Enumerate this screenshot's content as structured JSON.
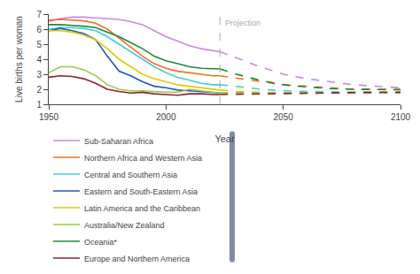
{
  "chart_data": {
    "type": "line",
    "xlabel": "Year",
    "ylabel": "Live births per woman",
    "xlim": [
      1950,
      2100
    ],
    "xticks": [
      1950,
      2000,
      2050,
      2100
    ],
    "ylim": [
      1,
      7
    ],
    "yticks": [
      1,
      2,
      3,
      4,
      5,
      6,
      7
    ],
    "grid": false,
    "legend": "bottom",
    "vlines": [
      {
        "x": 2023,
        "line_style": "dashed",
        "color": "#aaaaaa"
      }
    ],
    "annotations": [
      {
        "text": "Projection",
        "x": 2023,
        "y": 6.8,
        "color": "#aaaaaa"
      }
    ],
    "series": [
      {
        "name": "Sub-Saharan Africa",
        "color": "#cc88dd",
        "line_style": "solid",
        "x": [
          1950,
          1955,
          1960,
          1965,
          1970,
          1975,
          1980,
          1985,
          1990,
          1995,
          2000,
          2005,
          2010,
          2015,
          2020,
          2023
        ],
        "values": [
          6.5,
          6.7,
          6.8,
          6.8,
          6.75,
          6.7,
          6.65,
          6.5,
          6.3,
          5.9,
          5.5,
          5.2,
          4.9,
          4.7,
          4.6,
          4.5
        ],
        "projection": {
          "line_style": "dashed",
          "x": [
            2023,
            2030,
            2040,
            2050,
            2060,
            2070,
            2080,
            2090,
            2100
          ],
          "values": [
            4.5,
            4.1,
            3.5,
            3.0,
            2.7,
            2.5,
            2.3,
            2.2,
            2.1
          ]
        }
      },
      {
        "name": "Northern Africa and Western Asia",
        "color": "#f07020",
        "line_style": "solid",
        "x": [
          1950,
          1955,
          1960,
          1965,
          1970,
          1975,
          1980,
          1985,
          1990,
          1995,
          2000,
          2005,
          2010,
          2015,
          2020,
          2023
        ],
        "values": [
          6.6,
          6.65,
          6.6,
          6.55,
          6.4,
          6.0,
          5.4,
          4.8,
          4.2,
          3.7,
          3.4,
          3.2,
          3.1,
          3.0,
          2.9,
          2.9
        ],
        "projection": {
          "line_style": "dashed",
          "x": [
            2023,
            2030,
            2040,
            2050,
            2060,
            2070,
            2080,
            2090,
            2100
          ],
          "values": [
            2.9,
            2.75,
            2.5,
            2.3,
            2.2,
            2.1,
            2.0,
            2.0,
            2.0
          ]
        }
      },
      {
        "name": "Central and Southern Asia",
        "color": "#44ccdd",
        "line_style": "solid",
        "x": [
          1950,
          1955,
          1960,
          1965,
          1970,
          1975,
          1980,
          1985,
          1990,
          1995,
          2000,
          2005,
          2010,
          2015,
          2020,
          2023
        ],
        "values": [
          6.0,
          6.1,
          6.1,
          6.05,
          5.9,
          5.5,
          5.0,
          4.5,
          4.0,
          3.5,
          3.1,
          2.8,
          2.6,
          2.4,
          2.3,
          2.3
        ],
        "projection": {
          "line_style": "dashed",
          "x": [
            2023,
            2030,
            2040,
            2050,
            2060,
            2070,
            2080,
            2090,
            2100
          ],
          "values": [
            2.3,
            2.2,
            2.0,
            1.9,
            1.85,
            1.82,
            1.8,
            1.79,
            1.79
          ]
        }
      },
      {
        "name": "Eastern and South-Eastern Asia",
        "color": "#2255bb",
        "line_style": "solid",
        "x": [
          1950,
          1955,
          1960,
          1965,
          1970,
          1975,
          1980,
          1985,
          1990,
          1995,
          2000,
          2005,
          2010,
          2015,
          2020,
          2023
        ],
        "values": [
          5.9,
          6.05,
          5.9,
          5.7,
          5.3,
          4.2,
          3.2,
          2.9,
          2.5,
          2.2,
          2.1,
          1.95,
          1.9,
          1.85,
          1.8,
          1.75
        ],
        "projection": {
          "line_style": "dashed",
          "x": [
            2023,
            2030,
            2040,
            2050,
            2060,
            2070,
            2080,
            2090,
            2100
          ],
          "values": [
            1.75,
            1.75,
            1.75,
            1.76,
            1.77,
            1.78,
            1.78,
            1.79,
            1.8
          ]
        }
      },
      {
        "name": "Latin America and the Caribbean",
        "color": "#ddcc00",
        "line_style": "solid",
        "x": [
          1950,
          1955,
          1960,
          1965,
          1970,
          1975,
          1980,
          1985,
          1990,
          1995,
          2000,
          2005,
          2010,
          2015,
          2020,
          2023
        ],
        "values": [
          5.9,
          5.9,
          5.8,
          5.6,
          5.3,
          4.7,
          4.0,
          3.5,
          3.0,
          2.7,
          2.5,
          2.3,
          2.2,
          2.1,
          2.0,
          1.95
        ],
        "projection": {
          "line_style": "dashed",
          "x": [
            2023,
            2030,
            2040,
            2050,
            2060,
            2070,
            2080,
            2090,
            2100
          ],
          "values": [
            1.95,
            1.87,
            1.8,
            1.77,
            1.76,
            1.75,
            1.75,
            1.75,
            1.75
          ]
        }
      },
      {
        "name": "Australia/New Zealand",
        "color": "#99cc44",
        "line_style": "solid",
        "x": [
          1950,
          1955,
          1960,
          1965,
          1970,
          1975,
          1980,
          1985,
          1990,
          1995,
          2000,
          2005,
          2010,
          2015,
          2020,
          2023
        ],
        "values": [
          3.1,
          3.5,
          3.5,
          3.3,
          2.9,
          2.3,
          2.0,
          1.9,
          1.9,
          1.85,
          1.8,
          1.8,
          2.0,
          1.9,
          1.8,
          1.75
        ],
        "projection": {
          "line_style": "dashed",
          "x": [
            2023,
            2030,
            2040,
            2050,
            2060,
            2070,
            2080,
            2090,
            2100
          ],
          "values": [
            1.75,
            1.74,
            1.74,
            1.74,
            1.74,
            1.75,
            1.75,
            1.75,
            1.76
          ]
        }
      },
      {
        "name": "Oceania*",
        "color": "#228833",
        "line_style": "solid",
        "x": [
          1950,
          1955,
          1960,
          1965,
          1970,
          1975,
          1980,
          1985,
          1990,
          1995,
          2000,
          2005,
          2010,
          2015,
          2020,
          2023
        ],
        "values": [
          6.3,
          6.3,
          6.25,
          6.2,
          6.1,
          5.8,
          5.5,
          5.1,
          4.7,
          4.2,
          3.9,
          3.7,
          3.5,
          3.4,
          3.35,
          3.35
        ],
        "projection": {
          "line_style": "dashed",
          "x": [
            2023,
            2030,
            2040,
            2050,
            2060,
            2070,
            2080,
            2090,
            2100
          ],
          "values": [
            3.35,
            3.0,
            2.6,
            2.3,
            2.15,
            2.05,
            2.0,
            1.98,
            1.97
          ]
        }
      },
      {
        "name": "Europe and Northern America",
        "color": "#882233",
        "line_style": "solid",
        "x": [
          1950,
          1955,
          1960,
          1965,
          1970,
          1975,
          1980,
          1985,
          1990,
          1995,
          2000,
          2005,
          2010,
          2015,
          2020,
          2023
        ],
        "values": [
          2.8,
          2.9,
          2.85,
          2.7,
          2.4,
          2.0,
          1.85,
          1.75,
          1.8,
          1.7,
          1.65,
          1.6,
          1.7,
          1.7,
          1.65,
          1.65
        ],
        "projection": {
          "line_style": "dashed",
          "x": [
            2023,
            2030,
            2040,
            2050,
            2060,
            2070,
            2080,
            2090,
            2100
          ],
          "values": [
            1.65,
            1.67,
            1.7,
            1.73,
            1.76,
            1.77,
            1.78,
            1.79,
            1.8
          ]
        }
      }
    ]
  }
}
